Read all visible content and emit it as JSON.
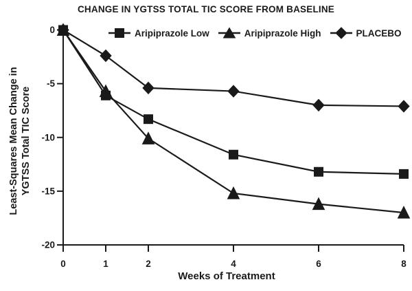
{
  "chart_data": {
    "type": "line",
    "title": "CHANGE IN YGTSS TOTAL TIC SCORE FROM BASELINE",
    "xlabel": "Weeks of Treatment",
    "ylabel_line1": "Least-Squares Mean Change in",
    "ylabel_line2": "YGTSS Total TIC Score",
    "x": [
      0,
      1,
      2,
      4,
      6,
      8
    ],
    "x_tick_labels": [
      "0",
      "1",
      "2",
      "4",
      "6",
      "8"
    ],
    "y_ticks": [
      0,
      -5,
      -10,
      -15,
      -20
    ],
    "y_tick_labels": [
      "0",
      "-5",
      "-10",
      "-15",
      "-20"
    ],
    "xlim": [
      0,
      8
    ],
    "ylim": [
      -20,
      0
    ],
    "grid": false,
    "legend_position": "top-inside",
    "ink_color": "#1a1a1a",
    "background_color": "#ffffff",
    "series": [
      {
        "name": "Aripiprazole Low",
        "marker": "square",
        "values": [
          0,
          -6.1,
          -8.3,
          -11.6,
          -13.2,
          -13.4
        ]
      },
      {
        "name": "Aripiprazole High",
        "marker": "triangle",
        "values": [
          0,
          -5.7,
          -10.1,
          -15.2,
          -16.2,
          -17.0
        ]
      },
      {
        "name": "PLACEBO",
        "marker": "diamond",
        "values": [
          0,
          -2.4,
          -5.4,
          -5.7,
          -7.0,
          -7.1
        ]
      }
    ]
  }
}
